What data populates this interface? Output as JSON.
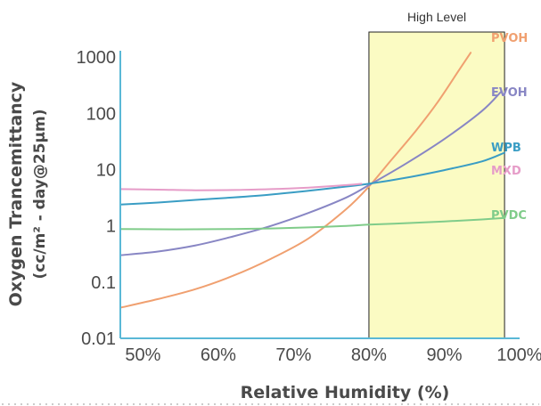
{
  "chart_data": {
    "type": "line",
    "title": "",
    "xlabel": "Relative Humidity (%)",
    "ylabel_line1": "Oxygen Trancemittancy",
    "ylabel_line2": "(cc/m² - day@25μm)",
    "y_scale": "log",
    "xlim": [
      47,
      100
    ],
    "ylim": [
      0.01,
      1300
    ],
    "x_ticks": [
      50,
      60,
      70,
      80,
      90,
      100
    ],
    "x_tick_labels": [
      "50%",
      "60%",
      "70%",
      "80%",
      "90%",
      "100%"
    ],
    "y_ticks": [
      0.01,
      0.1,
      1,
      10,
      100,
      1000
    ],
    "y_tick_labels": [
      "0.01",
      "0.1",
      "1",
      "10",
      "100",
      "1000"
    ],
    "grid": false,
    "legend": "right",
    "highlight_band": {
      "label": "High Level",
      "x_start": 80,
      "x_end": 98,
      "color": "#fbfbc3"
    },
    "series": [
      {
        "name": "PVOH",
        "color": "#f0a070",
        "x": [
          47,
          52,
          57,
          62,
          67,
          72,
          77,
          80,
          83,
          86,
          89,
          92,
          93.5
        ],
        "y": [
          0.035,
          0.05,
          0.075,
          0.13,
          0.26,
          0.6,
          2.0,
          5.0,
          15,
          45,
          150,
          600,
          1200
        ]
      },
      {
        "name": "EVOH",
        "color": "#8886c4",
        "x": [
          47,
          52,
          57,
          62,
          67,
          72,
          77,
          80,
          85,
          90,
          95,
          97.5
        ],
        "y": [
          0.3,
          0.35,
          0.45,
          0.65,
          1.0,
          1.7,
          3.2,
          5.3,
          13,
          35,
          110,
          240
        ]
      },
      {
        "name": "WPB",
        "color": "#3a9dc4",
        "x": [
          47,
          52,
          57,
          62,
          67,
          72,
          77,
          80,
          85,
          90,
          95,
          98
        ],
        "y": [
          2.4,
          2.6,
          2.9,
          3.2,
          3.6,
          4.2,
          5.0,
          5.6,
          7.2,
          9.8,
          14,
          20
        ]
      },
      {
        "name": "MXD",
        "color": "#e69cc8",
        "x": [
          47,
          52,
          57,
          62,
          67,
          72,
          77,
          79
        ],
        "y": [
          4.5,
          4.4,
          4.3,
          4.35,
          4.5,
          4.8,
          5.3,
          5.6
        ]
      },
      {
        "name": "PVDC",
        "color": "#80cc8a",
        "x": [
          47,
          52,
          57,
          62,
          67,
          72,
          77,
          80,
          85,
          90,
          95,
          98
        ],
        "y": [
          0.88,
          0.87,
          0.87,
          0.88,
          0.9,
          0.94,
          1.0,
          1.05,
          1.12,
          1.2,
          1.3,
          1.38
        ]
      }
    ]
  }
}
